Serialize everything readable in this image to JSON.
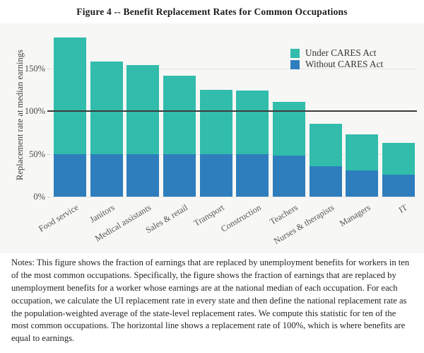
{
  "figure": {
    "title": "Figure 4 -- Benefit Replacement Rates for Common Occupations",
    "notes": "Notes: This figure shows the fraction of earnings that are replaced by unemployment benefits for workers in ten of the most common occupations. Specifically, the figure shows the fraction of earnings that are replaced by unemployment benefits for a worker whose earnings are at the national median of each occupation. For each occupation, we calculate the UI replacement rate in every state and then define the national replacement rate as the population-weighted average of the state-level replacement rates. We compute this statistic for ten of the most common occupations. The horizontal line shows a replacement rate of 100%, which is where benefits are equal to earnings."
  },
  "chart_data": {
    "type": "bar",
    "stacked": true,
    "title": "Figure 4 -- Benefit Replacement Rates for Common Occupations",
    "xlabel": "",
    "ylabel": "Replacement rate at median earnings",
    "categories": [
      "Food service",
      "Janitors",
      "Medical assistants",
      "Sales & retail",
      "Transport",
      "Construction",
      "Teachers",
      "Nurses & therapists",
      "Managers",
      "IT"
    ],
    "series": [
      {
        "name": "Under CARES Act",
        "color": "#31bcab",
        "role": "total-bar-height",
        "values": [
          186,
          158,
          154,
          142,
          125,
          124,
          111,
          85,
          73,
          63
        ]
      },
      {
        "name": "Without CARES Act",
        "color": "#2e7dbd",
        "role": "bottom-segment",
        "values": [
          50,
          50,
          50,
          50,
          50,
          50,
          48,
          36,
          31,
          26
        ]
      }
    ],
    "ytick_labels": [
      "0%",
      "50%",
      "100%",
      "150%"
    ],
    "ytick_values": [
      0,
      50,
      100,
      150
    ],
    "ylim": [
      0,
      193
    ],
    "gridline_values": [
      0,
      50,
      150
    ],
    "reference_line": {
      "value": 100,
      "label": "replacement rate of 100%",
      "color": "#3c3c3c"
    },
    "legend_position": "top-right",
    "colors": {
      "teal": "#31bcab",
      "blue": "#2e7dbd",
      "grid": "#e4e4e0",
      "figure_background": "#f7f7f5",
      "reference": "#3c3c3c"
    }
  }
}
